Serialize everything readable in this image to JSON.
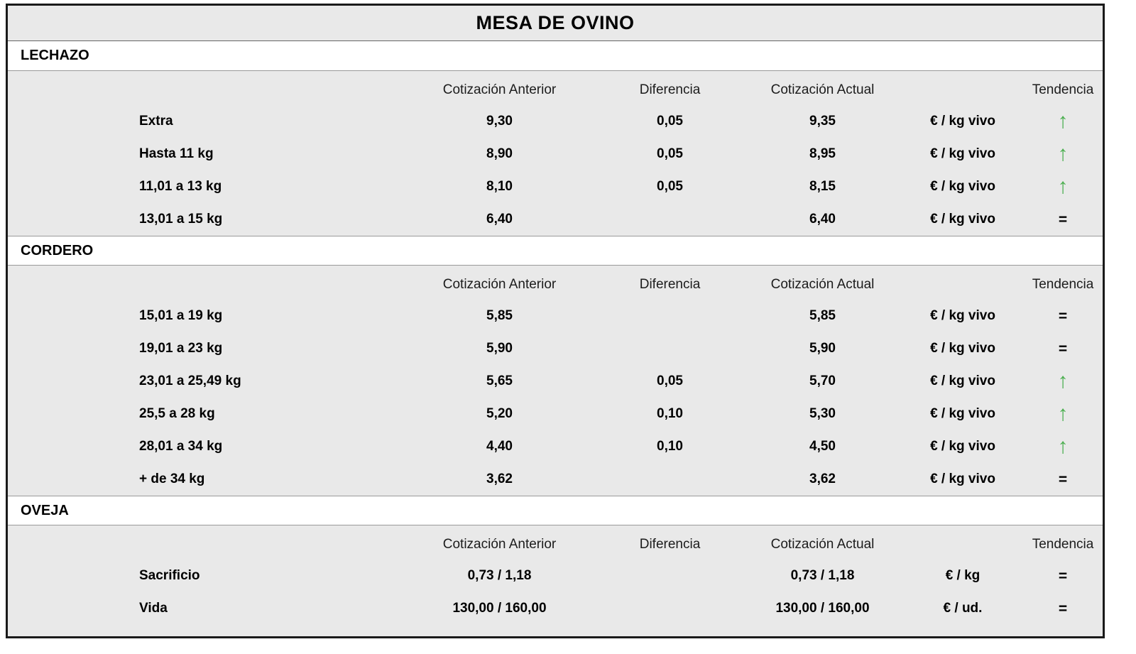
{
  "title": "MESA DE OVINO",
  "column_headers": {
    "anterior": "Cotización Anterior",
    "diferencia": "Diferencia",
    "actual": "Cotización Actual",
    "tendencia": "Tendencia"
  },
  "trend_symbols": {
    "up": "↑",
    "equal": "="
  },
  "colors": {
    "trend_up": "#4caf50",
    "trend_equal": "#000000",
    "table_background": "#e9e9e9",
    "section_header_background": "#ffffff",
    "border": "#1a1a1a"
  },
  "sections": [
    {
      "name": "LECHAZO",
      "rows": [
        {
          "label": "Extra",
          "anterior": "9,30",
          "diferencia": "0,05",
          "actual": "9,35",
          "unit": "€ / kg vivo",
          "trend": "up"
        },
        {
          "label": "Hasta 11 kg",
          "anterior": "8,90",
          "diferencia": "0,05",
          "actual": "8,95",
          "unit": "€ / kg vivo",
          "trend": "up"
        },
        {
          "label": "11,01 a 13 kg",
          "anterior": "8,10",
          "diferencia": "0,05",
          "actual": "8,15",
          "unit": "€ / kg vivo",
          "trend": "up"
        },
        {
          "label": "13,01 a 15 kg",
          "anterior": "6,40",
          "diferencia": "",
          "actual": "6,40",
          "unit": "€ / kg vivo",
          "trend": "equal"
        }
      ]
    },
    {
      "name": "CORDERO",
      "rows": [
        {
          "label": "15,01 a 19 kg",
          "anterior": "5,85",
          "diferencia": "",
          "actual": "5,85",
          "unit": "€ / kg vivo",
          "trend": "equal"
        },
        {
          "label": "19,01 a 23 kg",
          "anterior": "5,90",
          "diferencia": "",
          "actual": "5,90",
          "unit": "€ / kg vivo",
          "trend": "equal"
        },
        {
          "label": "23,01 a 25,49 kg",
          "anterior": "5,65",
          "diferencia": "0,05",
          "actual": "5,70",
          "unit": "€ / kg vivo",
          "trend": "up"
        },
        {
          "label": "25,5 a 28 kg",
          "anterior": "5,20",
          "diferencia": "0,10",
          "actual": "5,30",
          "unit": "€ / kg vivo",
          "trend": "up"
        },
        {
          "label": "28,01 a 34 kg",
          "anterior": "4,40",
          "diferencia": "0,10",
          "actual": "4,50",
          "unit": "€ / kg vivo",
          "trend": "up"
        },
        {
          "label": "+ de 34 kg",
          "anterior": "3,62",
          "diferencia": "",
          "actual": "3,62",
          "unit": "€ / kg vivo",
          "trend": "equal"
        }
      ]
    },
    {
      "name": "OVEJA",
      "rows": [
        {
          "label": "Sacrificio",
          "anterior": "0,73 / 1,18",
          "diferencia": "",
          "actual": "0,73 / 1,18",
          "unit": "€ / kg",
          "trend": "equal"
        },
        {
          "label": "Vida",
          "anterior": "130,00 / 160,00",
          "diferencia": "",
          "actual": "130,00 / 160,00",
          "unit": "€ / ud.",
          "trend": "equal"
        }
      ]
    }
  ]
}
